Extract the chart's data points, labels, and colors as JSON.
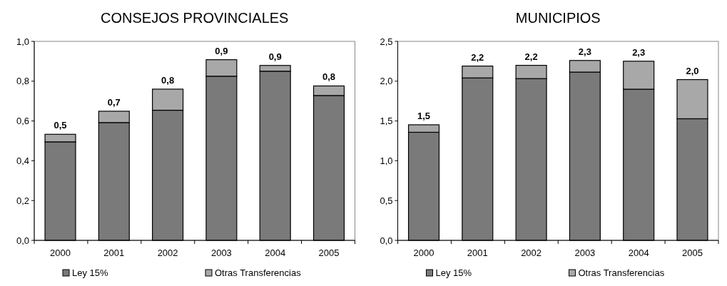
{
  "chart_data": [
    {
      "type": "bar",
      "title": "CONSEJOS PROVINCIALES",
      "categories": [
        "2000",
        "2001",
        "2002",
        "2003",
        "2004",
        "2005"
      ],
      "stacked": true,
      "series": [
        {
          "name": "Ley 15%",
          "color": "#7a7a7a",
          "values": [
            0.495,
            0.592,
            0.654,
            0.825,
            0.85,
            0.728
          ]
        },
        {
          "name": "Otras Transferencias",
          "color": "#a8a8a8",
          "values": [
            0.038,
            0.057,
            0.106,
            0.083,
            0.029,
            0.048
          ]
        }
      ],
      "totals": [
        "0,5",
        "0,7",
        "0,8",
        "0,9",
        "0,9",
        "0,8"
      ],
      "ylim": [
        0,
        1
      ],
      "yticks": [
        {
          "value": 0,
          "label": "0,0"
        },
        {
          "value": 0.2,
          "label": "0,2"
        },
        {
          "value": 0.4,
          "label": "0,4"
        },
        {
          "value": 0.6,
          "label": "0,6"
        },
        {
          "value": 0.8,
          "label": "0,8"
        },
        {
          "value": 1,
          "label": "1,0"
        }
      ],
      "grid": false,
      "legend": "bottom"
    },
    {
      "type": "bar",
      "title": "MUNICIPIOS",
      "categories": [
        "2000",
        "2001",
        "2002",
        "2003",
        "2004",
        "2005"
      ],
      "stacked": true,
      "series": [
        {
          "name": "Ley 15%",
          "color": "#7a7a7a",
          "values": [
            1.358,
            2.041,
            2.032,
            2.114,
            1.899,
            1.528
          ]
        },
        {
          "name": "Otras Transferencias",
          "color": "#a8a8a8",
          "values": [
            0.094,
            0.149,
            0.167,
            0.146,
            0.352,
            0.492
          ]
        }
      ],
      "totals": [
        "1,5",
        "2,2",
        "2,2",
        "2,3",
        "2,3",
        "2,0"
      ],
      "ylim": [
        0,
        2.5
      ],
      "yticks": [
        {
          "value": 0,
          "label": "0,0"
        },
        {
          "value": 0.5,
          "label": "0,5"
        },
        {
          "value": 1,
          "label": "1,0"
        },
        {
          "value": 1.5,
          "label": "1,5"
        },
        {
          "value": 2,
          "label": "2,0"
        },
        {
          "value": 2.5,
          "label": "2,5"
        }
      ],
      "grid": false,
      "legend": "bottom"
    }
  ]
}
